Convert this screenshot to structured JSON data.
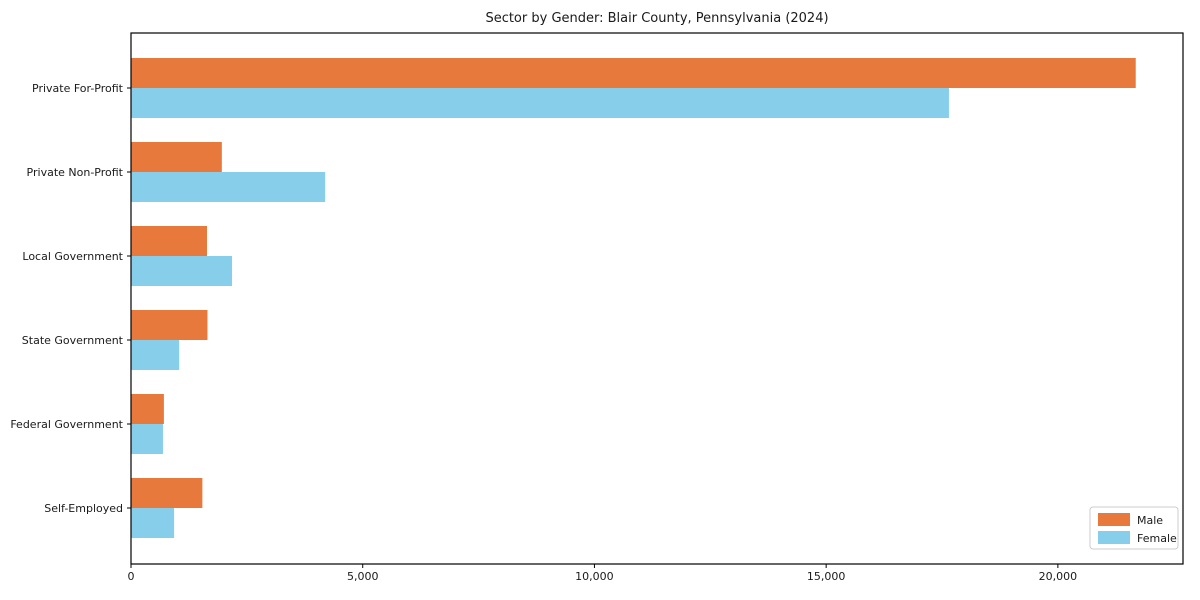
{
  "chart_data": {
    "type": "bar",
    "orientation": "horizontal",
    "title": "Sector by Gender: Blair County, Pennsylvania (2024)",
    "categories": [
      "Private For-Profit",
      "Private Non-Profit",
      "Local Government",
      "State Government",
      "Federal Government",
      "Self-Employed"
    ],
    "series": [
      {
        "name": "Male",
        "color": "#E8793C",
        "values": [
          21680,
          1960,
          1640,
          1650,
          710,
          1540
        ]
      },
      {
        "name": "Female",
        "color": "#87CEEB",
        "values": [
          17650,
          4190,
          2180,
          1040,
          690,
          930
        ]
      }
    ],
    "xlabel": "",
    "ylabel": "",
    "xlim": [
      0,
      22700
    ],
    "xticks": [
      0,
      5000,
      10000,
      15000,
      20000
    ],
    "xtick_labels": [
      "0",
      "5,000",
      "10,000",
      "15,000",
      "20,000"
    ],
    "grid": false,
    "legend": {
      "position": "lower-right",
      "entries": [
        {
          "label": "Male",
          "color": "#E8793C"
        },
        {
          "label": "Female",
          "color": "#87CEEB"
        }
      ]
    },
    "axis_color": "#000000",
    "text_color": "#1a1a1a",
    "background_color": "#ffffff"
  }
}
